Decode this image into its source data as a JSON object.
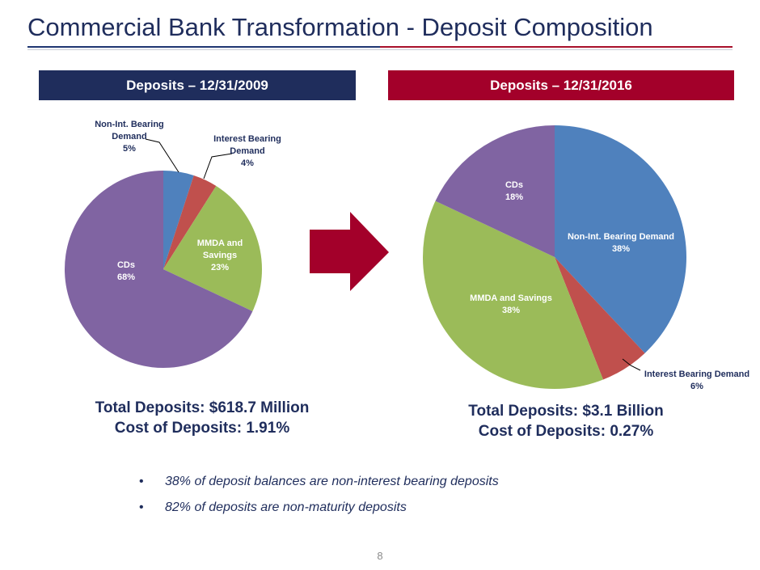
{
  "title": "Commercial Bank Transformation - Deposit Composition",
  "page_number": "8",
  "left_panel": {
    "header": "Deposits – 12/31/2009",
    "total_line": "Total Deposits: $618.7 Million",
    "cost_line": "Cost of Deposits: 1.91%"
  },
  "right_panel": {
    "header": "Deposits – 12/31/2016",
    "total_line": "Total Deposits: $3.1 Billion",
    "cost_line": "Cost of Deposits: 0.27%"
  },
  "bullets": [
    "38% of deposit balances are non-interest bearing deposits",
    "82% of deposits are non-maturity deposits"
  ],
  "colors": {
    "navy": "#1f2d5c",
    "red": "#a3002a",
    "slice_blue": "#4f81bd",
    "slice_red": "#c0504d",
    "slice_green": "#9bbb59",
    "slice_purple": "#8064a2"
  },
  "chart_data": [
    {
      "type": "pie",
      "title": "",
      "slices": [
        {
          "label_lines": [
            "Non-Int. Bearing",
            "Demand"
          ],
          "pct_label": "5%",
          "value": 5,
          "color": "#4f81bd"
        },
        {
          "label_lines": [
            "Interest Bearing",
            "Demand"
          ],
          "pct_label": "4%",
          "value": 4,
          "color": "#c0504d"
        },
        {
          "label_lines": [
            "MMDA and",
            "Savings"
          ],
          "pct_label": "23%",
          "value": 23,
          "color": "#9bbb59"
        },
        {
          "label_lines": [
            "CDs"
          ],
          "pct_label": "68%",
          "value": 68,
          "color": "#8064a2"
        }
      ]
    },
    {
      "type": "pie",
      "title": "",
      "slices": [
        {
          "label_lines": [
            "Non-Int. Bearing Demand"
          ],
          "pct_label": "38%",
          "value": 38,
          "color": "#4f81bd"
        },
        {
          "label_lines": [
            "Interest Bearing Demand"
          ],
          "pct_label": "6%",
          "value": 6,
          "color": "#c0504d"
        },
        {
          "label_lines": [
            "MMDA and Savings"
          ],
          "pct_label": "38%",
          "value": 38,
          "color": "#9bbb59"
        },
        {
          "label_lines": [
            "CDs"
          ],
          "pct_label": "18%",
          "value": 18,
          "color": "#8064a2"
        }
      ]
    }
  ]
}
